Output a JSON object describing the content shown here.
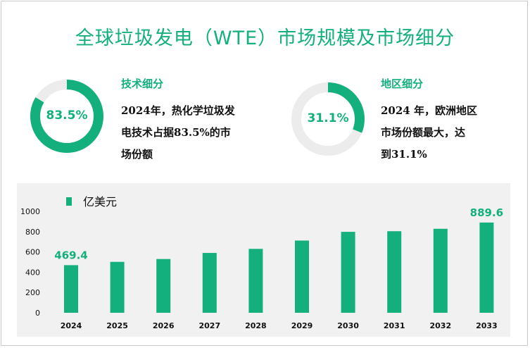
{
  "title": "全球垃圾发电（WTE）市场规模及市场细分",
  "colors": {
    "accent": "#13b07e",
    "ring_bg": "#ececec"
  },
  "segments": [
    {
      "heading": "技术细分",
      "percent_label": "83.5%",
      "percent": 83.5,
      "desc_lines": [
        "2024年，热化学垃圾发",
        "电技术占据83.5%的市",
        "场份额"
      ]
    },
    {
      "heading": "地区细分",
      "percent_label": "31.1%",
      "percent": 31.1,
      "desc_lines": [
        "2024 年，欧洲地区",
        "市场份额最大，达",
        "到31.1%"
      ]
    }
  ],
  "chart_data": {
    "type": "bar",
    "categories": [
      "2024",
      "2025",
      "2026",
      "2027",
      "2028",
      "2029",
      "2030",
      "2031",
      "2032",
      "2033"
    ],
    "series": [
      {
        "name": "亿美元",
        "values": [
          469.4,
          502,
          530,
          590,
          630,
          712,
          798,
          804,
          828,
          889.6
        ]
      }
    ],
    "data_labels": {
      "0": "469.4",
      "9": "889.6"
    },
    "yticks": [
      0,
      200,
      400,
      600,
      800,
      1000
    ],
    "ylim": [
      0,
      1000
    ],
    "legend_position": "top-left",
    "grid": false
  }
}
